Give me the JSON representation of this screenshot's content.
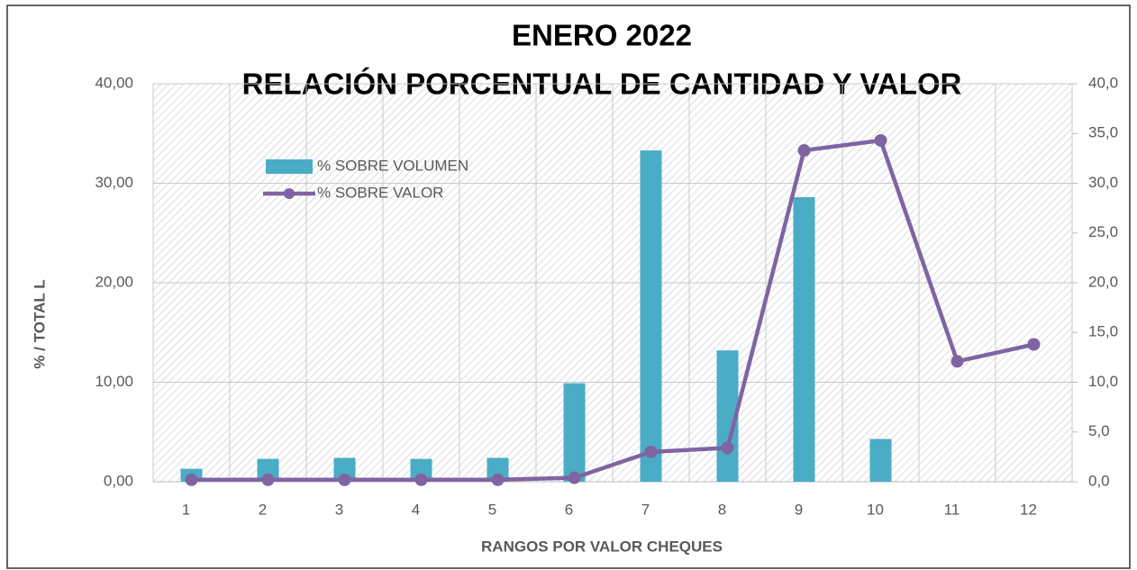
{
  "chart_data": {
    "type": "bar-line",
    "title": [
      "ENERO 2022",
      "RELACIÓN PORCENTUAL DE CANTIDAD Y VALOR"
    ],
    "x_label": "RANGOS POR VALOR CHEQUES",
    "y_label": "% /  TOTAL L",
    "categories": [
      "1",
      "2",
      "3",
      "4",
      "5",
      "6",
      "7",
      "8",
      "9",
      "10",
      "11",
      "12"
    ],
    "series": [
      {
        "name": "% SOBRE VOLUMEN",
        "type": "bar",
        "color": "#4bacc6",
        "values": [
          1.3,
          2.3,
          2.4,
          2.3,
          2.4,
          9.9,
          33.3,
          13.2,
          28.6,
          4.3,
          0,
          0
        ]
      },
      {
        "name": "% SOBRE VALOR",
        "type": "line",
        "axis": "y2",
        "color": "#8064a2",
        "values": [
          0.2,
          0.2,
          0.2,
          0.2,
          0.2,
          0.4,
          3.0,
          3.4,
          33.3,
          34.3,
          12.1,
          13.8
        ]
      }
    ],
    "ylim": [
      0,
      40
    ],
    "yticks": [
      {
        "value": 0,
        "label": "0,00"
      },
      {
        "value": 10,
        "label": "10,00"
      },
      {
        "value": 20,
        "label": "20,00"
      },
      {
        "value": 30,
        "label": "30,00"
      },
      {
        "value": 40,
        "label": "40,00"
      }
    ],
    "y2lim": [
      0,
      40
    ],
    "y2ticks": [
      {
        "value": 0,
        "label": "0,0"
      },
      {
        "value": 5,
        "label": "5,0"
      },
      {
        "value": 10,
        "label": "10,0"
      },
      {
        "value": 15,
        "label": "15,0"
      },
      {
        "value": 20,
        "label": "20,0"
      },
      {
        "value": 25,
        "label": "25,0"
      },
      {
        "value": 30,
        "label": "30,0"
      },
      {
        "value": 35,
        "label": "35,0"
      },
      {
        "value": 40,
        "label": "40,0"
      }
    ],
    "grid": true
  }
}
